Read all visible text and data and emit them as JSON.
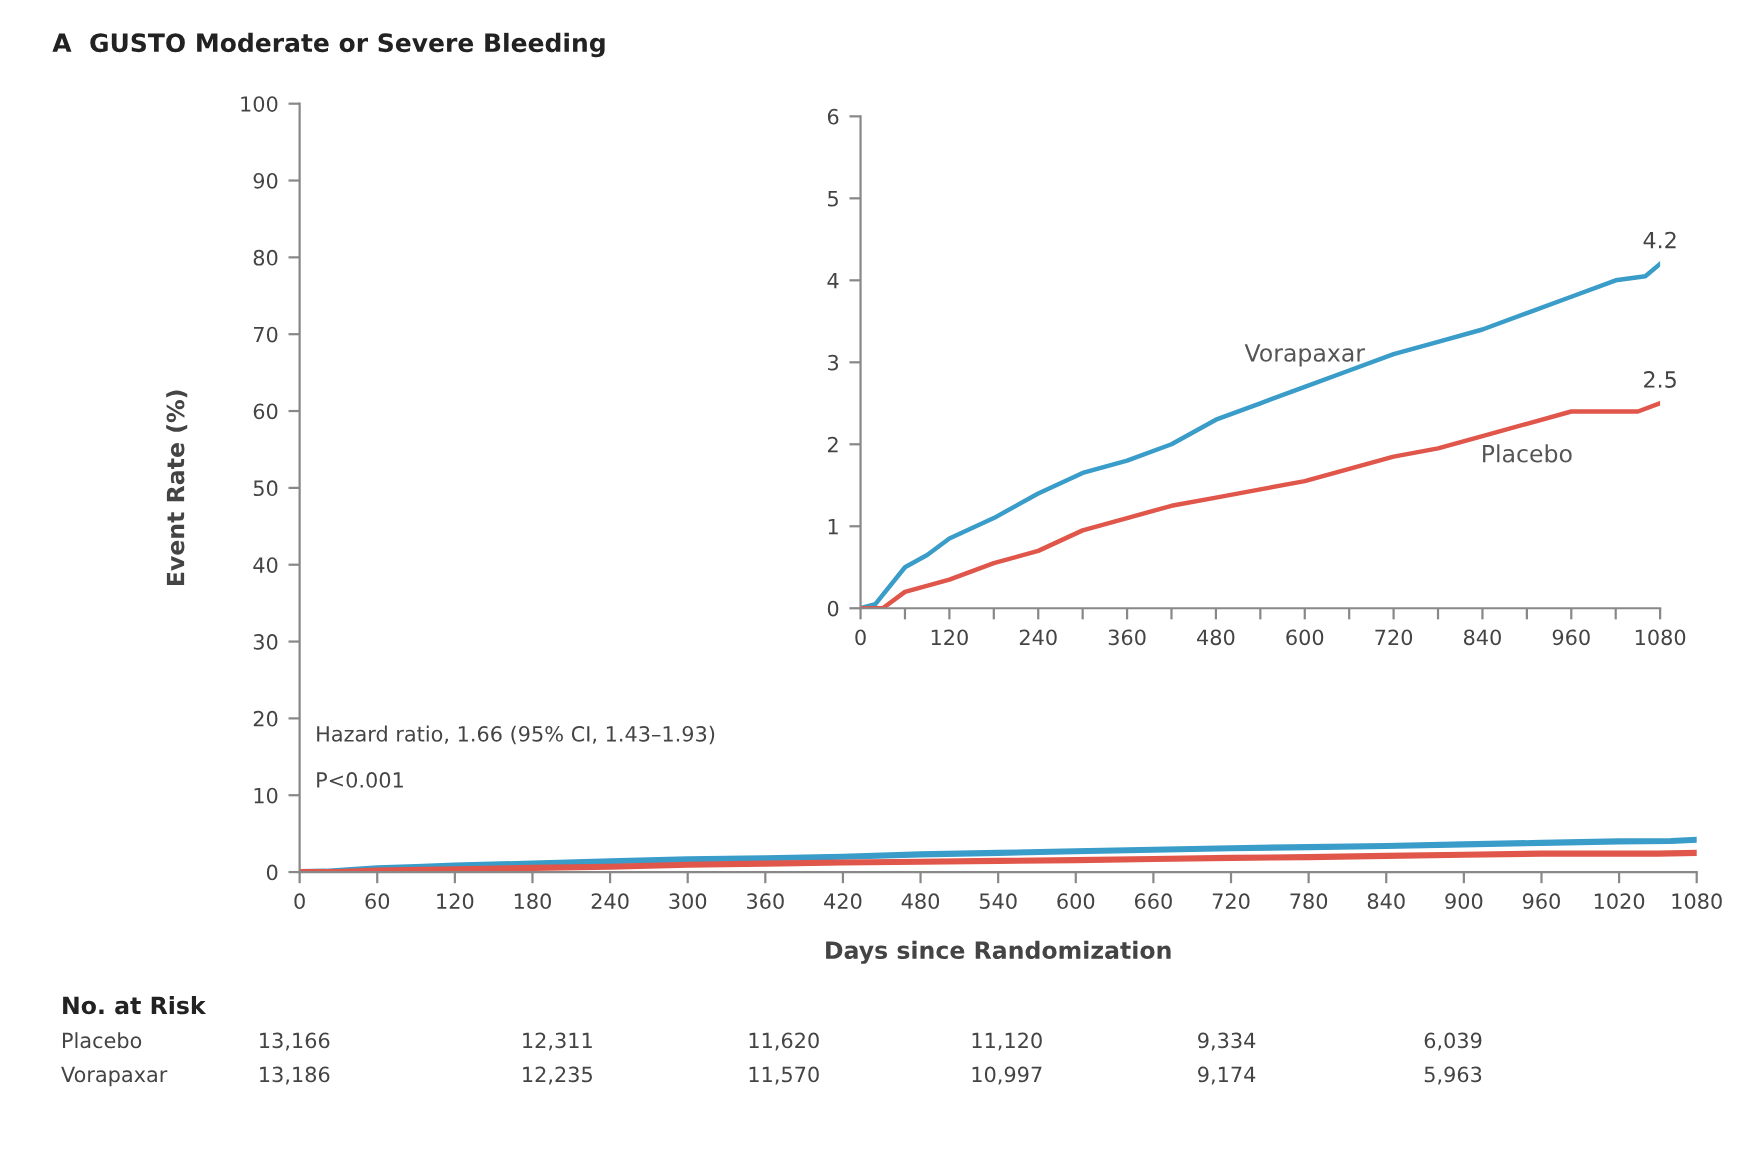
{
  "chart_data": [
    {
      "type": "line",
      "title": "A  GUSTO Moderate or Severe Bleeding",
      "xlabel": "Days since Randomization",
      "ylabel": "Event Rate (%)",
      "xlim": [
        0,
        1080
      ],
      "ylim": [
        0,
        100
      ],
      "xticks": [
        0,
        60,
        120,
        180,
        240,
        300,
        360,
        420,
        480,
        540,
        600,
        660,
        720,
        780,
        840,
        900,
        960,
        1020,
        1080
      ],
      "yticks": [
        0,
        10,
        20,
        30,
        40,
        50,
        60,
        70,
        80,
        90,
        100
      ],
      "series": [
        {
          "color": "#3a9cc8",
          "x": [
            0,
            20,
            60,
            90,
            120,
            180,
            240,
            300,
            360,
            420,
            480,
            540,
            600,
            660,
            720,
            780,
            840,
            900,
            960,
            1020,
            1060,
            1080
          ],
          "values": [
            0,
            0.05,
            0.5,
            0.65,
            0.85,
            1.1,
            1.4,
            1.65,
            1.8,
            2.0,
            2.3,
            2.5,
            2.7,
            2.9,
            3.1,
            3.25,
            3.4,
            3.6,
            3.8,
            4.0,
            4.05,
            4.2
          ]
        },
        {
          "color": "#e0564a",
          "x": [
            0,
            30,
            60,
            120,
            180,
            240,
            300,
            360,
            420,
            480,
            540,
            600,
            660,
            720,
            780,
            840,
            900,
            960,
            1020,
            1050,
            1080
          ],
          "values": [
            0,
            0,
            0.2,
            0.35,
            0.55,
            0.7,
            0.95,
            1.1,
            1.25,
            1.35,
            1.45,
            1.55,
            1.7,
            1.85,
            1.95,
            2.1,
            2.25,
            2.4,
            2.4,
            2.4,
            2.5
          ]
        }
      ],
      "annotations": [
        "Hazard ratio, 1.66 (95% CI, 1.43–1.93)",
        "P<0.001",
        "No. at Risk",
        "Placebo",
        "13,166",
        "12,311",
        "11,620",
        "11,120",
        "9,334",
        "6,039",
        "Vorapaxar",
        "13,186",
        "12,235",
        "11,570",
        "10,997",
        "9,174",
        "5,963"
      ]
    },
    {
      "type": "line",
      "xlim": [
        0,
        1080
      ],
      "ylim": [
        0,
        6
      ],
      "xticks": [
        0,
        {
          "value": 60,
          "label": null
        },
        120,
        {
          "value": 180,
          "label": null
        },
        240,
        {
          "value": 300,
          "label": null
        },
        360,
        {
          "value": 420,
          "label": null
        },
        480,
        {
          "value": 540,
          "label": null
        },
        600,
        {
          "value": 660,
          "label": null
        },
        720,
        {
          "value": 780,
          "label": null
        },
        840,
        {
          "value": 900,
          "label": null
        },
        960,
        {
          "value": 1020,
          "label": null
        },
        1080
      ],
      "yticks": [
        0,
        1,
        2,
        3,
        4,
        5,
        6
      ],
      "series": [
        {
          "name": "Vorapaxar",
          "color": "#3a9cc8",
          "x": [
            0,
            20,
            60,
            90,
            120,
            180,
            240,
            300,
            360,
            420,
            480,
            540,
            600,
            660,
            720,
            780,
            840,
            900,
            960,
            1020,
            1060,
            1080
          ],
          "values": [
            0,
            0.05,
            0.5,
            0.65,
            0.85,
            1.1,
            1.4,
            1.65,
            1.8,
            2.0,
            2.3,
            2.5,
            2.7,
            2.9,
            3.1,
            3.25,
            3.4,
            3.6,
            3.8,
            4.0,
            4.05,
            4.2
          ]
        },
        {
          "name": "Placebo",
          "color": "#e0564a",
          "x": [
            0,
            30,
            60,
            120,
            180,
            240,
            300,
            360,
            420,
            480,
            540,
            600,
            660,
            720,
            780,
            840,
            900,
            960,
            1020,
            1050,
            1080
          ],
          "values": [
            0,
            0,
            0.2,
            0.35,
            0.55,
            0.7,
            0.95,
            1.1,
            1.25,
            1.35,
            1.45,
            1.55,
            1.7,
            1.85,
            1.95,
            2.1,
            2.25,
            2.4,
            2.4,
            2.4,
            2.5
          ]
        }
      ],
      "annotations": [
        {
          "text": "4.2",
          "x": 1080,
          "y": 4.2
        },
        {
          "text": "2.5",
          "x": 1080,
          "y": 2.5
        }
      ]
    }
  ]
}
